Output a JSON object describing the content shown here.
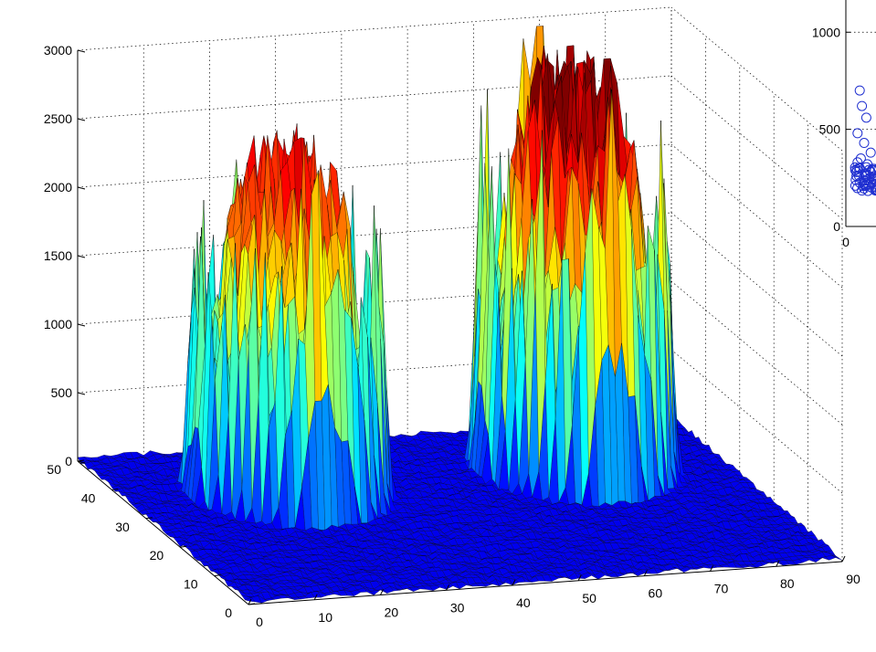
{
  "chart_data": [
    {
      "type": "surface3d",
      "colormap": "jet",
      "colors": {
        "low": "#00008f",
        "mid": "#7fff7f",
        "high": "#d40000",
        "edge": "#000000"
      },
      "x_ticks": [
        "0",
        "10",
        "20",
        "30",
        "40",
        "50",
        "60",
        "70",
        "80",
        "90"
      ],
      "y_ticks": [
        "0",
        "10",
        "20",
        "30",
        "40",
        "50"
      ],
      "z_ticks": [
        "0",
        "500",
        "1000",
        "1500",
        "2000",
        "2500",
        "3000"
      ],
      "xlim": [
        0,
        90
      ],
      "ylim": [
        0,
        50
      ],
      "zlim": [
        0,
        3000
      ],
      "grid": true,
      "peaks": [
        {
          "x": 24,
          "y": 35,
          "height": 2050
        },
        {
          "x": 68,
          "y": 36,
          "height": 2450
        }
      ]
    },
    {
      "type": "scatter",
      "marker": "open-circle",
      "color": "#1f2fd0",
      "y_ticks": [
        "0",
        "500",
        "1000"
      ],
      "x_ticks": [
        "0"
      ],
      "ylim": [
        0,
        1100
      ],
      "points": [
        {
          "x": 0.6,
          "y": 700
        },
        {
          "x": 0.8,
          "y": 620
        },
        {
          "x": 1.2,
          "y": 560
        },
        {
          "x": 0.4,
          "y": 480
        },
        {
          "x": 1.0,
          "y": 430
        },
        {
          "x": 1.6,
          "y": 380
        },
        {
          "x": 0.7,
          "y": 350
        },
        {
          "x": 1.3,
          "y": 320
        },
        {
          "x": 0.5,
          "y": 300
        },
        {
          "x": 1.8,
          "y": 290
        },
        {
          "x": 1.1,
          "y": 270
        },
        {
          "x": 0.3,
          "y": 260
        },
        {
          "x": 1.5,
          "y": 250
        },
        {
          "x": 0.9,
          "y": 240
        },
        {
          "x": 2.0,
          "y": 235
        },
        {
          "x": 0.6,
          "y": 225
        },
        {
          "x": 1.4,
          "y": 215
        },
        {
          "x": 0.2,
          "y": 210
        },
        {
          "x": 1.7,
          "y": 200
        },
        {
          "x": 1.0,
          "y": 195
        },
        {
          "x": 0.8,
          "y": 185
        },
        {
          "x": 2.1,
          "y": 190
        },
        {
          "x": 1.2,
          "y": 260
        },
        {
          "x": 0.4,
          "y": 330
        }
      ]
    }
  ]
}
